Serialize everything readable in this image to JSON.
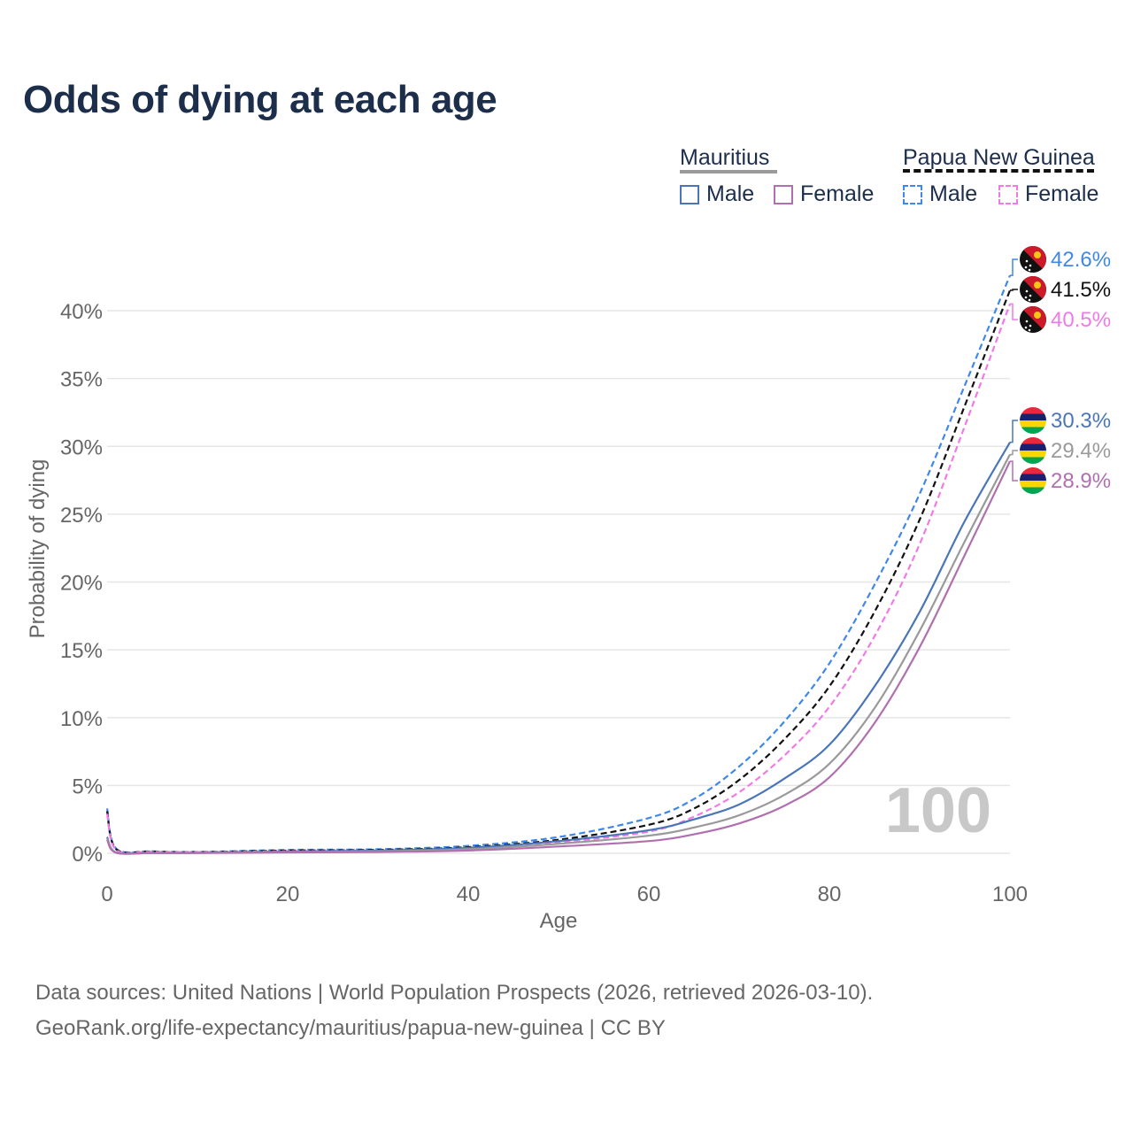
{
  "title": "Odds of dying at each age",
  "legend": {
    "group1": {
      "title": "Mauritius",
      "male": "Male",
      "female": "Female"
    },
    "group2": {
      "title": "Papua New Guinea",
      "male": "Male",
      "female": "Female"
    }
  },
  "colors": {
    "mauritius_male": "#4a76b8",
    "mauritius_female": "#b070b0",
    "mauritius_both": "#9a9a9a",
    "png_male": "#3f88e8",
    "png_female": "#f07ae6",
    "png_both": "#111111"
  },
  "watermark_year": "100",
  "footer": {
    "line1": "Data sources: United Nations | World Population Prospects (2026, retrieved 2026-03-10).",
    "line2": "GeoRank.org/life-expectancy/mauritius/papua-new-guinea | CC BY"
  },
  "chart_data": {
    "type": "line",
    "title": "Odds of dying at each age",
    "xlabel": "Age",
    "ylabel": "Probability of dying",
    "xlim": [
      0,
      100
    ],
    "ylim": [
      0,
      45
    ],
    "xticks": [
      "0",
      "20",
      "40",
      "60",
      "80",
      "100"
    ],
    "yticks": [
      "0%",
      "5%",
      "10%",
      "15%",
      "20%",
      "25%",
      "30%",
      "35%",
      "40%"
    ],
    "x": [
      0,
      1,
      5,
      10,
      20,
      30,
      40,
      50,
      60,
      65,
      70,
      75,
      80,
      85,
      90,
      95,
      100
    ],
    "series": [
      {
        "name": "Papua New Guinea Male",
        "key": "png_male",
        "dashed": true,
        "end_label": "42.6%",
        "values": [
          3.3,
          0.35,
          0.15,
          0.1,
          0.25,
          0.3,
          0.55,
          1.2,
          2.6,
          4.0,
          6.4,
          9.7,
          14.0,
          19.8,
          26.5,
          34.5,
          42.6
        ]
      },
      {
        "name": "Papua New Guinea",
        "key": "png_both",
        "dashed": true,
        "end_label": "41.5%",
        "values": [
          3.1,
          0.3,
          0.13,
          0.09,
          0.2,
          0.25,
          0.45,
          1.0,
          2.1,
          3.3,
          5.4,
          8.4,
          12.3,
          17.8,
          24.6,
          33.0,
          41.5
        ]
      },
      {
        "name": "Papua New Guinea Female",
        "key": "png_female",
        "dashed": true,
        "end_label": "40.5%",
        "values": [
          2.9,
          0.25,
          0.11,
          0.08,
          0.15,
          0.2,
          0.35,
          0.8,
          1.6,
          2.7,
          4.5,
          7.2,
          10.8,
          16.0,
          22.8,
          31.5,
          40.5
        ]
      },
      {
        "name": "Mauritius Male",
        "key": "mauritius_male",
        "dashed": false,
        "end_label": "30.3%",
        "values": [
          1.2,
          0.06,
          0.03,
          0.03,
          0.12,
          0.2,
          0.4,
          0.9,
          1.7,
          2.5,
          3.6,
          5.5,
          8.0,
          12.3,
          17.8,
          24.5,
          30.3
        ]
      },
      {
        "name": "Mauritius",
        "key": "mauritius_both",
        "dashed": false,
        "end_label": "29.4%",
        "values": [
          1.1,
          0.05,
          0.025,
          0.025,
          0.09,
          0.15,
          0.3,
          0.7,
          1.3,
          1.9,
          2.8,
          4.3,
          6.6,
          10.7,
          16.4,
          23.0,
          29.4
        ]
      },
      {
        "name": "Mauritius Female",
        "key": "mauritius_female",
        "dashed": false,
        "end_label": "28.9%",
        "values": [
          1.0,
          0.04,
          0.02,
          0.02,
          0.06,
          0.1,
          0.2,
          0.5,
          0.9,
          1.4,
          2.2,
          3.5,
          5.6,
          9.6,
          15.2,
          22.0,
          28.9
        ]
      }
    ]
  }
}
